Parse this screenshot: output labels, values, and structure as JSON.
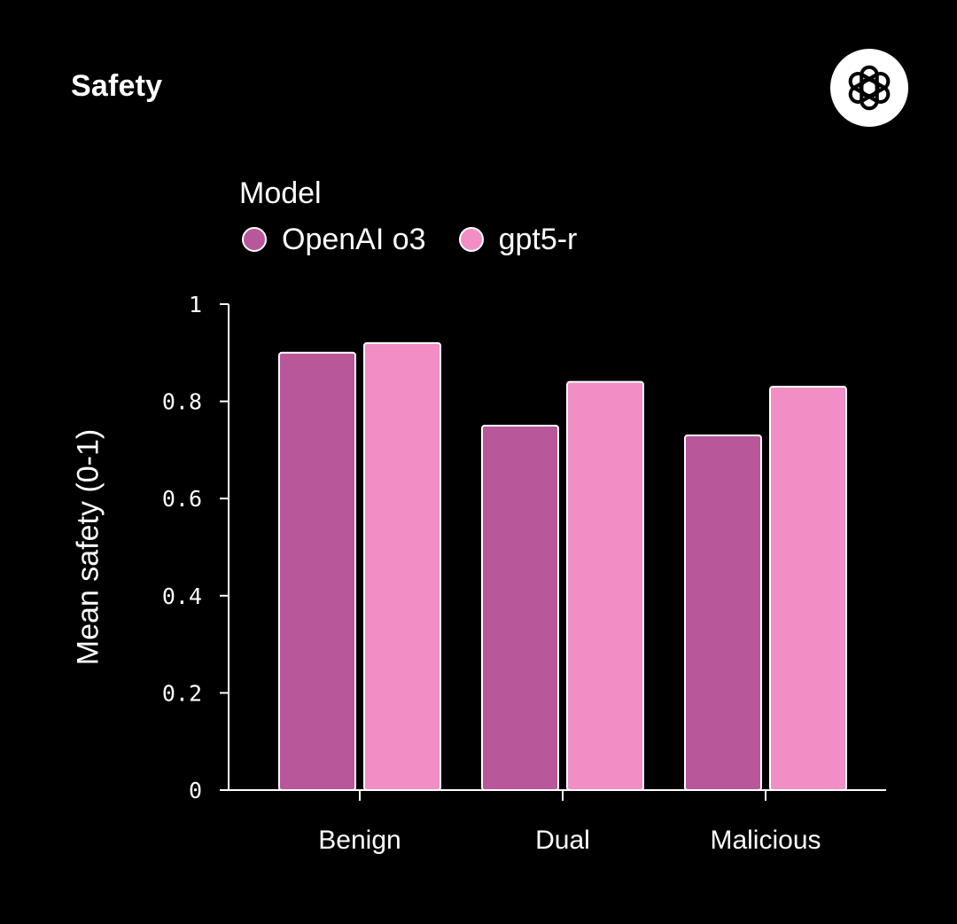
{
  "header": {
    "title": "Safety",
    "logo_icon": "openai-logo-icon"
  },
  "legend": {
    "title": "Model",
    "items": [
      {
        "label": "OpenAI o3",
        "color": "#b8579a"
      },
      {
        "label": "gpt5-r",
        "color": "#f28dc5"
      }
    ]
  },
  "chart_data": {
    "type": "bar",
    "title": "Safety",
    "xlabel": "",
    "ylabel": "Mean safety (0-1)",
    "categories": [
      "Benign",
      "Dual",
      "Malicious"
    ],
    "series": [
      {
        "name": "OpenAI o3",
        "color": "#b8579a",
        "values": [
          0.9,
          0.75,
          0.73
        ]
      },
      {
        "name": "gpt5-r",
        "color": "#f28dc5",
        "values": [
          0.92,
          0.84,
          0.83
        ]
      }
    ],
    "ylim": [
      0,
      1
    ],
    "yticks": [
      0,
      0.2,
      0.4,
      0.6,
      0.8,
      1
    ],
    "ytick_labels": [
      "0",
      "0.2",
      "0.4",
      "0.6",
      "0.8",
      "1"
    ],
    "grid": false,
    "legend_position": "top-left"
  }
}
